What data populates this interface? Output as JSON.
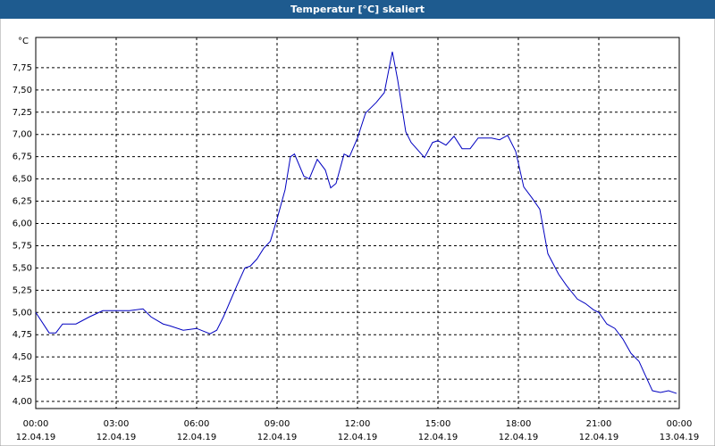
{
  "chart_data": {
    "type": "line",
    "title": "Temperatur [°C] skaliert",
    "y_unit": "°C",
    "x": [
      0,
      0.5,
      0.75,
      1.0,
      1.5,
      2.0,
      2.5,
      3.0,
      3.5,
      4.0,
      4.3,
      4.75,
      5.0,
      5.5,
      6.0,
      6.5,
      6.75,
      7.0,
      7.5,
      7.8,
      8.0,
      8.25,
      8.5,
      8.75,
      9.0,
      9.3,
      9.5,
      9.65,
      10.0,
      10.2,
      10.5,
      10.8,
      11.0,
      11.2,
      11.5,
      11.7,
      12.0,
      12.3,
      12.7,
      13.0,
      13.3,
      13.5,
      13.8,
      14.0,
      14.5,
      14.8,
      15.0,
      15.3,
      15.6,
      15.9,
      16.2,
      16.5,
      17.0,
      17.3,
      17.6,
      17.9,
      18.2,
      18.5,
      18.8,
      19.1,
      19.5,
      19.8,
      20.2,
      20.5,
      20.8,
      21.0,
      21.3,
      21.6,
      21.9,
      22.2,
      22.5,
      22.8,
      23.0,
      23.3,
      23.6,
      23.9
    ],
    "series": [
      {
        "name": "Temperatur",
        "color": "#0000c0",
        "values": [
          5.0,
          4.77,
          4.77,
          4.87,
          4.87,
          4.95,
          5.02,
          5.02,
          5.02,
          5.04,
          4.95,
          4.87,
          4.85,
          4.8,
          4.82,
          4.76,
          4.8,
          4.95,
          5.3,
          5.5,
          5.52,
          5.6,
          5.72,
          5.8,
          6.05,
          6.38,
          6.75,
          6.78,
          6.53,
          6.5,
          6.72,
          6.6,
          6.4,
          6.45,
          6.78,
          6.75,
          6.96,
          7.24,
          7.36,
          7.47,
          7.93,
          7.61,
          7.03,
          6.91,
          6.74,
          6.91,
          6.93,
          6.88,
          6.98,
          6.84,
          6.84,
          6.96,
          6.96,
          6.94,
          6.99,
          6.81,
          6.41,
          6.29,
          6.16,
          5.66,
          5.43,
          5.3,
          5.15,
          5.1,
          5.03,
          5.0,
          4.87,
          4.82,
          4.7,
          4.54,
          4.45,
          4.25,
          4.12,
          4.1,
          4.12,
          4.09
        ]
      }
    ],
    "xlim": [
      0,
      24
    ],
    "xticks": [
      {
        "value": 0,
        "label": "00:00"
      },
      {
        "value": 3,
        "label": "03:00"
      },
      {
        "value": 6,
        "label": "06:00"
      },
      {
        "value": 9,
        "label": "09:00"
      },
      {
        "value": 12,
        "label": "12:00"
      },
      {
        "value": 15,
        "label": "15:00"
      },
      {
        "value": 18,
        "label": "18:00"
      },
      {
        "value": 21,
        "label": "21:00"
      },
      {
        "value": 24,
        "label": "00:00"
      }
    ],
    "xtick_dates": [
      "12.04.19",
      "12.04.19",
      "12.04.19",
      "12.04.19",
      "12.04.19",
      "12.04.19",
      "12.04.19",
      "12.04.19",
      "13.04.19"
    ],
    "ylim": [
      3.92,
      8.09
    ],
    "yticks": [
      {
        "value": 4,
        "label": "4,00"
      },
      {
        "value": 4.25,
        "label": "4,25"
      },
      {
        "value": 4.5,
        "label": "4,50"
      },
      {
        "value": 4.75,
        "label": "4,75"
      },
      {
        "value": 5,
        "label": "5,00"
      },
      {
        "value": 5.25,
        "label": "5,25"
      },
      {
        "value": 5.5,
        "label": "5,50"
      },
      {
        "value": 5.75,
        "label": "5,75"
      },
      {
        "value": 6,
        "label": "6,00"
      },
      {
        "value": 6.25,
        "label": "6,25"
      },
      {
        "value": 6.5,
        "label": "6,50"
      },
      {
        "value": 6.75,
        "label": "6,75"
      },
      {
        "value": 7,
        "label": "7,00"
      },
      {
        "value": 7.25,
        "label": "7,25"
      },
      {
        "value": 7.5,
        "label": "7,50"
      },
      {
        "value": 7.75,
        "label": "7,75"
      }
    ],
    "grid": true
  }
}
